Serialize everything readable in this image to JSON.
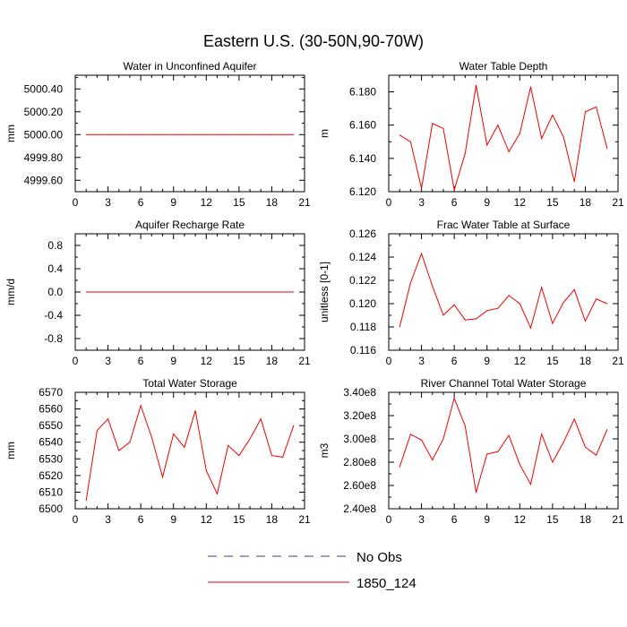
{
  "title": "Eastern U.S. (30-50N,90-70W)",
  "legend": [
    {
      "label": "No Obs",
      "color": "#3b3b8f",
      "dash": "dashed"
    },
    {
      "label": "1850_124",
      "color": "#ee0000",
      "dash": "solid"
    }
  ],
  "chart_data": [
    {
      "type": "line",
      "title": "Water in Unconfined Aquifer",
      "ylabel": "mm",
      "xlim": [
        0,
        21
      ],
      "xticks": [
        0,
        3,
        6,
        9,
        12,
        15,
        18,
        21
      ],
      "ylim": [
        4999.5,
        5000.52
      ],
      "yticks": [
        4999.6,
        4999.8,
        5000.0,
        5000.2,
        5000.4
      ],
      "ytick_labels": [
        "4999.60",
        "4999.80",
        "5000.00",
        "5000.20",
        "5000.40"
      ],
      "series": [
        {
          "name": "1850_124",
          "color": "#ee0000",
          "x": [
            1,
            2,
            3,
            4,
            5,
            6,
            7,
            8,
            9,
            10,
            11,
            12,
            13,
            14,
            15,
            16,
            17,
            18,
            19,
            20
          ],
          "values": [
            5000.0,
            5000.0,
            5000.0,
            5000.0,
            5000.0,
            5000.0,
            5000.0,
            5000.0,
            5000.0,
            5000.0,
            5000.0,
            5000.0,
            5000.0,
            5000.0,
            5000.0,
            5000.0,
            5000.0,
            5000.0,
            5000.0,
            5000.0
          ]
        }
      ]
    },
    {
      "type": "line",
      "title": "Water Table Depth",
      "ylabel": "m",
      "xlim": [
        0,
        21
      ],
      "xticks": [
        0,
        3,
        6,
        9,
        12,
        15,
        18,
        21
      ],
      "ylim": [
        6.12,
        6.19
      ],
      "yticks": [
        6.12,
        6.14,
        6.16,
        6.18
      ],
      "ytick_labels": [
        "6.120",
        "6.140",
        "6.160",
        "6.180"
      ],
      "series": [
        {
          "name": "1850_124",
          "color": "#ee0000",
          "x": [
            1,
            2,
            3,
            4,
            5,
            6,
            7,
            8,
            9,
            10,
            11,
            12,
            13,
            14,
            15,
            16,
            17,
            18,
            19,
            20
          ],
          "values": [
            6.154,
            6.15,
            6.122,
            6.161,
            6.158,
            6.121,
            6.143,
            6.184,
            6.148,
            6.16,
            6.144,
            6.155,
            6.183,
            6.152,
            6.166,
            6.153,
            6.126,
            6.168,
            6.171,
            6.146
          ]
        }
      ]
    },
    {
      "type": "line",
      "title": "Aquifer Recharge Rate",
      "ylabel": "mm/d",
      "xlim": [
        0,
        21
      ],
      "xticks": [
        0,
        3,
        6,
        9,
        12,
        15,
        18,
        21
      ],
      "ylim": [
        -1.0,
        1.0
      ],
      "yticks": [
        -0.8,
        -0.4,
        0.0,
        0.4,
        0.8
      ],
      "ytick_labels": [
        "-0.8",
        "-0.4",
        "0.0",
        "0.4",
        "0.8"
      ],
      "series": [
        {
          "name": "1850_124",
          "color": "#ee0000",
          "x": [
            1,
            2,
            3,
            4,
            5,
            6,
            7,
            8,
            9,
            10,
            11,
            12,
            13,
            14,
            15,
            16,
            17,
            18,
            19,
            20
          ],
          "values": [
            0,
            0,
            0,
            0,
            0,
            0,
            0,
            0,
            0,
            0,
            0,
            0,
            0,
            0,
            0,
            0,
            0,
            0,
            0,
            0
          ]
        }
      ]
    },
    {
      "type": "line",
      "title": "Frac Water Table at Surface",
      "ylabel": "unitless [0-1]",
      "xlim": [
        0,
        21
      ],
      "xticks": [
        0,
        3,
        6,
        9,
        12,
        15,
        18,
        21
      ],
      "ylim": [
        0.116,
        0.126
      ],
      "yticks": [
        0.116,
        0.118,
        0.12,
        0.122,
        0.124,
        0.126
      ],
      "ytick_labels": [
        "0.116",
        "0.118",
        "0.120",
        "0.122",
        "0.124",
        "0.126"
      ],
      "series": [
        {
          "name": "1850_124",
          "color": "#ee0000",
          "x": [
            1,
            2,
            3,
            4,
            5,
            6,
            7,
            8,
            9,
            10,
            11,
            12,
            13,
            14,
            15,
            16,
            17,
            18,
            19,
            20
          ],
          "values": [
            0.118,
            0.1218,
            0.1243,
            0.1215,
            0.119,
            0.1199,
            0.1186,
            0.1187,
            0.1194,
            0.1196,
            0.1207,
            0.12,
            0.1179,
            0.1214,
            0.1183,
            0.1201,
            0.1212,
            0.1185,
            0.1204,
            0.12
          ]
        }
      ]
    },
    {
      "type": "line",
      "title": "Total Water Storage",
      "ylabel": "mm",
      "xlim": [
        0,
        21
      ],
      "xticks": [
        0,
        3,
        6,
        9,
        12,
        15,
        18,
        21
      ],
      "ylim": [
        6500,
        6570
      ],
      "yticks": [
        6500,
        6510,
        6520,
        6530,
        6540,
        6550,
        6560,
        6570
      ],
      "ytick_labels": [
        "6500",
        "6510",
        "6520",
        "6530",
        "6540",
        "6550",
        "6560",
        "6570"
      ],
      "series": [
        {
          "name": "1850_124",
          "color": "#ee0000",
          "x": [
            1,
            2,
            3,
            4,
            5,
            6,
            7,
            8,
            9,
            10,
            11,
            12,
            13,
            14,
            15,
            16,
            17,
            18,
            19,
            20
          ],
          "values": [
            6505,
            6547,
            6554,
            6535,
            6540,
            6562,
            6543,
            6519,
            6545,
            6537,
            6559,
            6523,
            6509,
            6538,
            6532,
            6542,
            6554,
            6532,
            6531,
            6550
          ]
        }
      ]
    },
    {
      "type": "line",
      "title": "River Channel Total Water Storage",
      "ylabel": "m3",
      "xlim": [
        0,
        21
      ],
      "xticks": [
        0,
        3,
        6,
        9,
        12,
        15,
        18,
        21
      ],
      "ylim": [
        240000000.0,
        340000000.0
      ],
      "yticks": [
        240000000.0,
        260000000.0,
        280000000.0,
        300000000.0,
        320000000.0,
        340000000.0
      ],
      "ytick_labels": [
        "2.40e8",
        "2.60e8",
        "2.80e8",
        "3.00e8",
        "3.20e8",
        "3.40e8"
      ],
      "series": [
        {
          "name": "1850_124",
          "color": "#ee0000",
          "x": [
            1,
            2,
            3,
            4,
            5,
            6,
            7,
            8,
            9,
            10,
            11,
            12,
            13,
            14,
            15,
            16,
            17,
            18,
            19,
            20
          ],
          "values": [
            276000000.0,
            304000000.0,
            299000000.0,
            282000000.0,
            300000000.0,
            335000000.0,
            311000000.0,
            254000000.0,
            287000000.0,
            289000000.0,
            303000000.0,
            278000000.0,
            261000000.0,
            304000000.0,
            280000000.0,
            297000000.0,
            317000000.0,
            293000000.0,
            286000000.0,
            308000000.0
          ]
        }
      ]
    }
  ]
}
